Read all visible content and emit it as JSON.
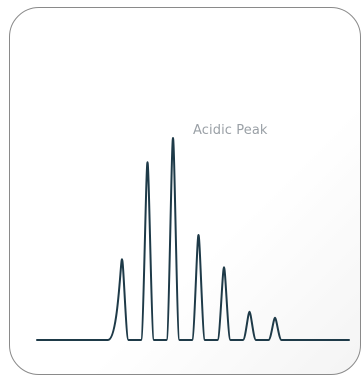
{
  "chart_data": {
    "type": "line",
    "title": "",
    "xlabel": "",
    "ylabel": "",
    "annotations": [
      {
        "text": "Acidic Peak",
        "peak_index": 2
      }
    ],
    "peaks": [
      {
        "position": 1,
        "height": 0.4
      },
      {
        "position": 2,
        "height": 0.88
      },
      {
        "position": 3,
        "height": 1.0
      },
      {
        "position": 4,
        "height": 0.52
      },
      {
        "position": 5,
        "height": 0.36
      },
      {
        "position": 6,
        "height": 0.14
      },
      {
        "position": 7,
        "height": 0.11
      }
    ],
    "grid": false,
    "legend": "none",
    "colors": {
      "trace": "#1e3a48",
      "annotation": "#9aa0a6",
      "border": "#8a8a8a"
    }
  }
}
